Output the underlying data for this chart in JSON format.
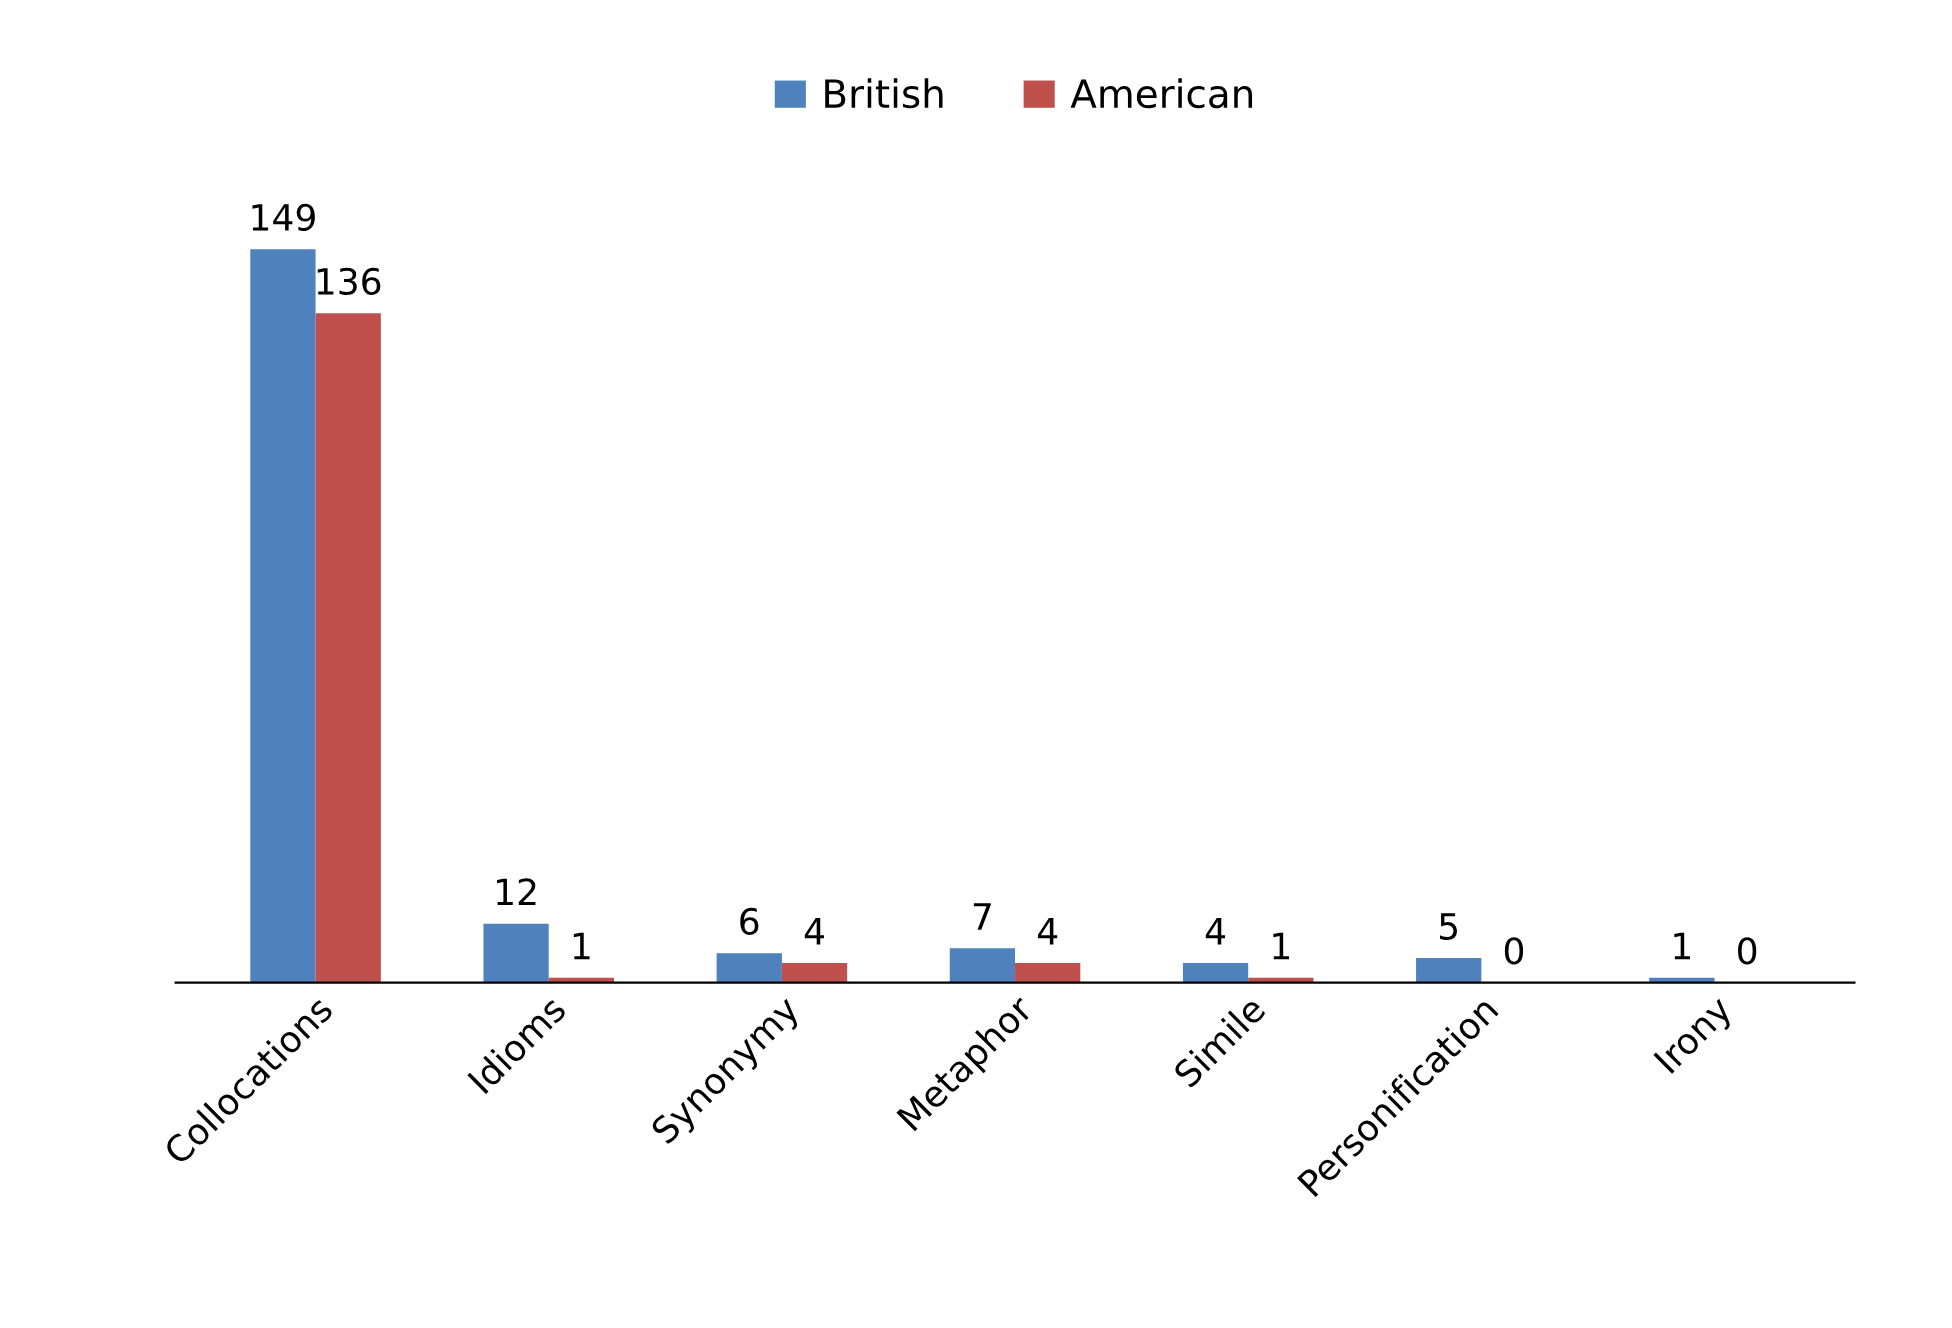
{
  "chart_data": {
    "type": "bar",
    "categories": [
      "Collocations",
      "Idioms",
      "Synonymy",
      "Metaphor",
      "Simile",
      "Personification",
      "Irony"
    ],
    "series": [
      {
        "name": "British",
        "color": "#4f81bd",
        "values": [
          149,
          12,
          6,
          7,
          4,
          5,
          1
        ]
      },
      {
        "name": "American",
        "color": "#c0504d",
        "values": [
          136,
          1,
          4,
          4,
          1,
          0,
          0
        ]
      }
    ],
    "data_labels": true,
    "legend": "top",
    "grid": false
  }
}
